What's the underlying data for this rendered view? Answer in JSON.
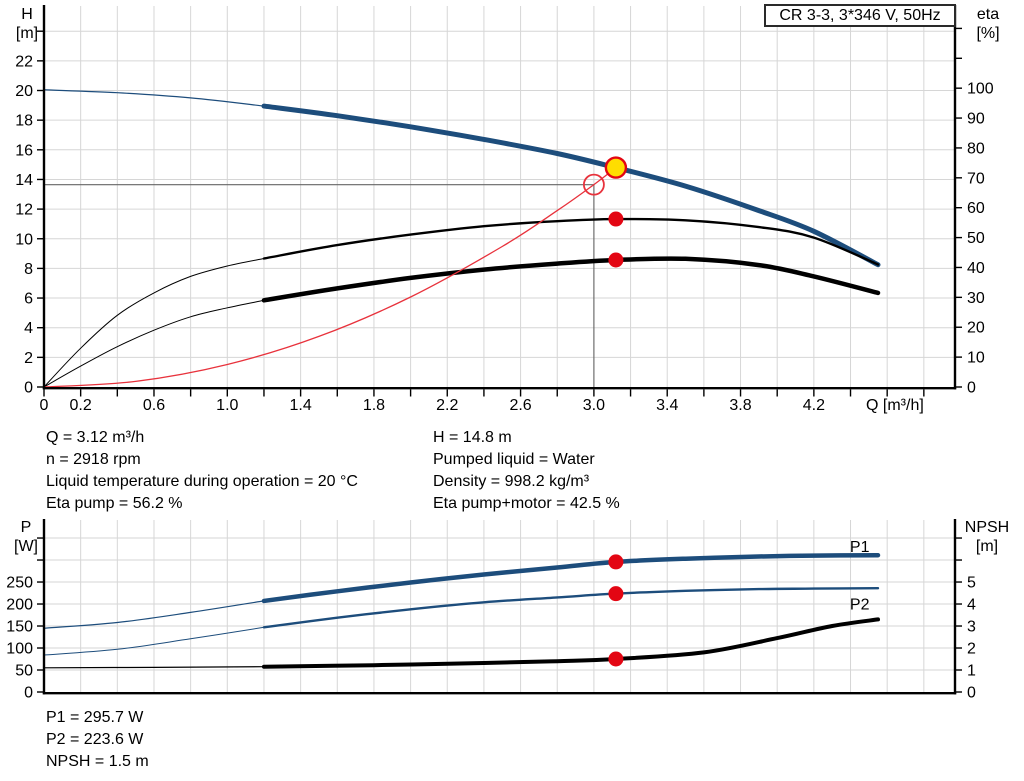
{
  "info": {
    "top_left": [
      "Q = 3.12 m³/h",
      "n = 2918 rpm",
      "Liquid temperature during operation = 20 °C",
      "Eta pump = 56.2 %"
    ],
    "top_right": [
      "H = 14.8 m",
      "Pumped liquid = Water",
      "Density = 998.2 kg/m³",
      "Eta pump+motor = 42.5 %"
    ],
    "bottom": [
      "P1 = 295.7 W",
      "P2 = 223.6 W",
      "NPSH = 1.5 m"
    ]
  },
  "colors": {
    "curve_blue": "#1d4d7c",
    "curve_black": "#000000",
    "curve_red": "#e8323c",
    "marker_red": "#e30613",
    "marker_yellow": "#ffdd00",
    "grid": "#d6d6d6",
    "guide_gray": "#666666"
  },
  "chart_data": [
    {
      "type": "line",
      "title": "CR 3-3, 3*346 V, 50Hz",
      "xlabel": "Q [m³/h]",
      "x_axis": {
        "lim": [
          0,
          4.97
        ],
        "grid_step": 0.2,
        "tick_labels": [
          {
            "v": 0,
            "t": "0"
          },
          {
            "v": 0.2,
            "t": "0.2"
          },
          {
            "v": 0.6,
            "t": "0.6"
          },
          {
            "v": 1.0,
            "t": "1.0"
          },
          {
            "v": 1.4,
            "t": "1.4"
          },
          {
            "v": 1.8,
            "t": "1.8"
          },
          {
            "v": 2.2,
            "t": "2.2"
          },
          {
            "v": 2.6,
            "t": "2.6"
          },
          {
            "v": 3.0,
            "t": "3.0"
          },
          {
            "v": 3.4,
            "t": "3.4"
          },
          {
            "v": 3.8,
            "t": "3.8"
          },
          {
            "v": 4.2,
            "t": "4.2"
          }
        ],
        "minor_ticks": [
          0.4,
          0.8,
          1.2,
          1.6,
          2.0,
          2.4,
          2.8,
          3.2,
          3.6,
          4.0,
          4.4,
          4.6,
          4.8
        ]
      },
      "left_axis": {
        "title": "H",
        "unit": "[m]",
        "lim": [
          0,
          25.7
        ],
        "grid_step": 2,
        "ticks": [
          0,
          2,
          4,
          6,
          8,
          10,
          12,
          14,
          16,
          18,
          20,
          22
        ],
        "minor_ticks": [
          24
        ]
      },
      "right_axis": {
        "title": "eta",
        "unit": "[%]",
        "lim": [
          0,
          127.5
        ],
        "ticks": [
          0,
          10,
          20,
          30,
          40,
          50,
          60,
          70,
          80,
          90,
          100
        ],
        "minor_ticks": [
          110,
          120
        ]
      },
      "series": [
        {
          "name": "head-curve",
          "color": "#1d4d7c",
          "axis": "left",
          "split_at": 1.2,
          "width_thin": 1.2,
          "width_thick": 5,
          "points": [
            [
              0,
              20.05
            ],
            [
              0.4,
              19.85
            ],
            [
              0.8,
              19.5
            ],
            [
              1.2,
              18.95
            ],
            [
              1.6,
              18.3
            ],
            [
              2,
              17.55
            ],
            [
              2.4,
              16.7
            ],
            [
              2.8,
              15.75
            ],
            [
              3.12,
              14.8
            ],
            [
              3.5,
              13.55
            ],
            [
              3.9,
              11.9
            ],
            [
              4.2,
              10.5
            ],
            [
              4.55,
              8.25
            ]
          ]
        },
        {
          "name": "eta-pump-curve",
          "color": "#000000",
          "axis": "right",
          "split_at": 1.2,
          "width_thin": 1,
          "width_thick": 2.4,
          "points": [
            [
              0,
              0
            ],
            [
              0.2,
              13
            ],
            [
              0.4,
              24
            ],
            [
              0.6,
              31.5
            ],
            [
              0.8,
              37
            ],
            [
              1,
              40.5
            ],
            [
              1.2,
              43
            ],
            [
              1.6,
              47.5
            ],
            [
              2,
              51
            ],
            [
              2.4,
              53.8
            ],
            [
              2.8,
              55.5
            ],
            [
              3.12,
              56.2
            ],
            [
              3.5,
              55.8
            ],
            [
              3.9,
              53.5
            ],
            [
              4.2,
              50
            ],
            [
              4.55,
              41
            ]
          ]
        },
        {
          "name": "eta-pump-motor-curve",
          "color": "#000000",
          "axis": "right",
          "split_at": 1.2,
          "width_thin": 1,
          "width_thick": 4.5,
          "points": [
            [
              0,
              0
            ],
            [
              0.2,
              7
            ],
            [
              0.4,
              13.5
            ],
            [
              0.6,
              19
            ],
            [
              0.8,
              23.5
            ],
            [
              1,
              26.5
            ],
            [
              1.2,
              29
            ],
            [
              1.6,
              33
            ],
            [
              2,
              36.5
            ],
            [
              2.4,
              39.3
            ],
            [
              2.8,
              41.3
            ],
            [
              3.12,
              42.5
            ],
            [
              3.5,
              42.9
            ],
            [
              3.9,
              40.8
            ],
            [
              4.2,
              37
            ],
            [
              4.55,
              31.5
            ]
          ]
        },
        {
          "name": "system-curve",
          "color": "#e8323c",
          "axis": "left",
          "width_thin": 1.3,
          "points": [
            [
              0,
              0
            ],
            [
              0.5,
              0.38
            ],
            [
              1,
              1.52
            ],
            [
              1.5,
              3.41
            ],
            [
              2,
              6.07
            ],
            [
              2.5,
              9.48
            ],
            [
              2.8,
              11.9
            ],
            [
              3,
              13.65
            ],
            [
              3.12,
              14.8
            ]
          ]
        }
      ],
      "guides": [
        {
          "name": "duty-head-line",
          "type": "h",
          "v": 13.65,
          "from": 0,
          "to": 3.0
        },
        {
          "name": "duty-flow-line",
          "type": "v",
          "v": 3.0,
          "from": 0,
          "to": 13.65
        }
      ],
      "markers": [
        {
          "name": "requested-duty-point",
          "shape": "open-circle",
          "x": 3.0,
          "y": 13.65,
          "axis": "left",
          "stroke": "#e8323c",
          "r": 10
        },
        {
          "name": "operating-point",
          "shape": "dot",
          "x": 3.12,
          "y": 14.8,
          "axis": "left",
          "fill": "#ffdd00",
          "stroke": "#e30613",
          "r": 10
        },
        {
          "name": "eta-pump-point",
          "shape": "dot",
          "x": 3.12,
          "y": 56.2,
          "axis": "right",
          "fill": "#e30613",
          "r": 7.5
        },
        {
          "name": "eta-pump-motor-point",
          "shape": "dot",
          "x": 3.12,
          "y": 42.5,
          "axis": "right",
          "fill": "#e30613",
          "r": 7.5
        }
      ]
    },
    {
      "type": "line",
      "title": "",
      "xlabel": "",
      "x_axis": {
        "lim": [
          0,
          4.97
        ],
        "grid_step": 0.2,
        "tick_labels": [],
        "minor_ticks": []
      },
      "left_axis": {
        "title": "P",
        "unit": "[W]",
        "lim": [
          0,
          391
        ],
        "grid_step": 50,
        "ticks": [
          0,
          50,
          100,
          150,
          200,
          250
        ],
        "minor_ticks": [
          300,
          350
        ]
      },
      "right_axis": {
        "title": "NPSH",
        "unit": "[m]",
        "lim": [
          0,
          7.82
        ],
        "ticks": [
          0,
          1,
          2,
          3,
          4,
          5
        ],
        "minor_ticks": [
          6,
          7
        ]
      },
      "series": [
        {
          "name": "p1-curve",
          "color": "#1d4d7c",
          "axis": "left",
          "split_at": 1.2,
          "width_thin": 1.2,
          "width_thick": 4.5,
          "points": [
            [
              0,
              145
            ],
            [
              0.4,
              158
            ],
            [
              0.8,
              181
            ],
            [
              1.2,
              207
            ],
            [
              1.6,
              229
            ],
            [
              2,
              249
            ],
            [
              2.4,
              267
            ],
            [
              2.8,
              283
            ],
            [
              3.12,
              295.7
            ],
            [
              3.5,
              303
            ],
            [
              3.9,
              308
            ],
            [
              4.2,
              310
            ],
            [
              4.55,
              311
            ]
          ]
        },
        {
          "name": "p2-curve",
          "color": "#1d4d7c",
          "axis": "left",
          "split_at": 1.2,
          "width_thin": 1,
          "width_thick": 2.4,
          "points": [
            [
              0,
              84
            ],
            [
              0.4,
              97
            ],
            [
              0.8,
              121
            ],
            [
              1.2,
              147
            ],
            [
              1.6,
              169
            ],
            [
              2,
              188
            ],
            [
              2.4,
              204
            ],
            [
              2.8,
              215
            ],
            [
              3.12,
              223.6
            ],
            [
              3.5,
              230
            ],
            [
              3.9,
              234
            ],
            [
              4.2,
              235
            ],
            [
              4.55,
              236
            ]
          ]
        },
        {
          "name": "npsh-curve",
          "color": "#000000",
          "axis": "right",
          "split_at": 1.2,
          "width_thin": 1.2,
          "width_thick": 4,
          "points": [
            [
              0,
              1.1
            ],
            [
              0.6,
              1.12
            ],
            [
              1.2,
              1.15
            ],
            [
              1.8,
              1.22
            ],
            [
              2.4,
              1.32
            ],
            [
              2.8,
              1.4
            ],
            [
              3.12,
              1.5
            ],
            [
              3.6,
              1.8
            ],
            [
              4,
              2.45
            ],
            [
              4.3,
              3.0
            ],
            [
              4.55,
              3.3
            ]
          ]
        }
      ],
      "labels": [
        {
          "text": "P1",
          "x": 4.45,
          "y": 318,
          "axis": "left",
          "color": "#1d4d7c"
        },
        {
          "text": "P2",
          "x": 4.45,
          "y": 188,
          "axis": "left",
          "color": "#1d4d7c"
        }
      ],
      "guides": [],
      "markers": [
        {
          "name": "p1-point",
          "shape": "dot",
          "x": 3.12,
          "y": 295.7,
          "axis": "left",
          "fill": "#e30613",
          "r": 7.5
        },
        {
          "name": "p2-point",
          "shape": "dot",
          "x": 3.12,
          "y": 223.6,
          "axis": "left",
          "fill": "#e30613",
          "r": 7.5
        },
        {
          "name": "npsh-point",
          "shape": "dot",
          "x": 3.12,
          "y": 1.5,
          "axis": "right",
          "fill": "#e30613",
          "r": 7.5
        }
      ]
    }
  ]
}
